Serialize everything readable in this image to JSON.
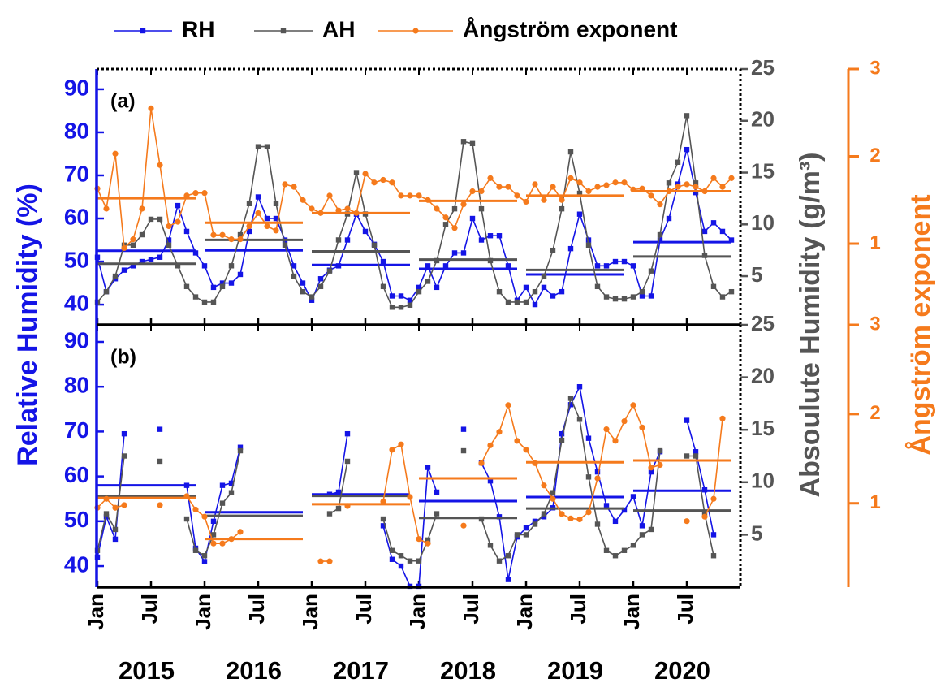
{
  "chart_data": [
    {
      "type": "line",
      "title": "(a)",
      "ylabel": "Relative Humidity (%)",
      "y2label": "Absoulute Humidity (g/m³)",
      "y3label": "Ångström exponent",
      "xlim": [
        "2015-01",
        "2021-01"
      ],
      "x": [
        "2015-01",
        "2015-02",
        "2015-03",
        "2015-04",
        "2015-05",
        "2015-06",
        "2015-07",
        "2015-08",
        "2015-09",
        "2015-10",
        "2015-11",
        "2015-12",
        "2016-01",
        "2016-02",
        "2016-03",
        "2016-04",
        "2016-05",
        "2016-06",
        "2016-07",
        "2016-08",
        "2016-09",
        "2016-10",
        "2016-11",
        "2016-12",
        "2017-01",
        "2017-02",
        "2017-03",
        "2017-04",
        "2017-05",
        "2017-06",
        "2017-07",
        "2017-08",
        "2017-09",
        "2017-10",
        "2017-11",
        "2017-12",
        "2018-01",
        "2018-02",
        "2018-03",
        "2018-04",
        "2018-05",
        "2018-06",
        "2018-07",
        "2018-08",
        "2018-09",
        "2018-10",
        "2018-11",
        "2018-12",
        "2019-01",
        "2019-02",
        "2019-03",
        "2019-04",
        "2019-05",
        "2019-06",
        "2019-07",
        "2019-08",
        "2019-09",
        "2019-10",
        "2019-11",
        "2019-12",
        "2020-01",
        "2020-02",
        "2020-03",
        "2020-04",
        "2020-05",
        "2020-06",
        "2020-07",
        "2020-08",
        "2020-09",
        "2020-10",
        "2020-11",
        "2020-12"
      ],
      "ylim": [
        35.3,
        94.7
      ],
      "yticks": [
        40,
        50,
        60,
        70,
        80,
        90
      ],
      "y2lim": [
        0.3,
        25
      ],
      "y2ticks": [
        5,
        10,
        15,
        20,
        25
      ],
      "y3lim": [
        0.07,
        3
      ],
      "y3ticks": [
        1,
        2,
        3
      ],
      "series": [
        {
          "name": "RH",
          "color": "#1414e6",
          "axis": "y",
          "marker": "square",
          "values": [
            51,
            43,
            46,
            48,
            49,
            50,
            50.5,
            51,
            55,
            63,
            57,
            52,
            49,
            44,
            45,
            45,
            47,
            57,
            65,
            60,
            60,
            55,
            49,
            45,
            41,
            46,
            48,
            49,
            55,
            61,
            57,
            54,
            50,
            42,
            42,
            41,
            44,
            49,
            44,
            49,
            52,
            52,
            60,
            55,
            56,
            56,
            49,
            41,
            44,
            40,
            44,
            42,
            43,
            53,
            61,
            55,
            49,
            49,
            50,
            50,
            49,
            42,
            42,
            55,
            60,
            68,
            76,
            66,
            57,
            59,
            57,
            55
          ],
          "means": [
            52.5,
            52.6,
            49.2,
            48.3,
            47,
            54.5
          ]
        },
        {
          "name": "AH",
          "color": "#555555",
          "axis": "y2",
          "marker": "square",
          "values": [
            2.5,
            3.5,
            5,
            8,
            8,
            9,
            10.5,
            10.5,
            8,
            6,
            4,
            3,
            2.5,
            2.5,
            4,
            6,
            9,
            12,
            17.5,
            17.5,
            12,
            8,
            5,
            3.5,
            3,
            4,
            5.5,
            8.5,
            11,
            15,
            11,
            8,
            4,
            2,
            2,
            2.2,
            3.5,
            4.5,
            6.5,
            10,
            11.5,
            18,
            17.8,
            11.5,
            6.5,
            3.5,
            2.5,
            2.5,
            2.5,
            3.5,
            5,
            7.5,
            11.5,
            17,
            13,
            8,
            4,
            3,
            2.8,
            2.8,
            3,
            3.5,
            5.5,
            9,
            14,
            16,
            20.5,
            14,
            7,
            4,
            3,
            3.5
          ],
          "means": [
            6.2,
            8.5,
            7.4,
            6.6,
            5.6,
            6.9
          ]
        },
        {
          "name": "Ångström exponent",
          "color": "#f57a1c",
          "axis": "y3",
          "marker": "circle",
          "values": [
            1.63,
            1.4,
            2.03,
            0.95,
            1.05,
            1.4,
            2.55,
            1.9,
            1.2,
            1.25,
            1.55,
            1.58,
            1.58,
            1.1,
            1.1,
            1.05,
            1.05,
            1.2,
            1.35,
            1.2,
            1.15,
            1.68,
            1.65,
            1.5,
            1.4,
            1.35,
            1.55,
            1.38,
            1.4,
            1.35,
            1.8,
            1.7,
            1.73,
            1.7,
            1.55,
            1.55,
            1.55,
            1.5,
            1.4,
            1.3,
            1.18,
            1.45,
            1.6,
            1.6,
            1.75,
            1.65,
            1.65,
            1.55,
            1.48,
            1.68,
            1.5,
            1.65,
            1.5,
            1.75,
            1.7,
            1.6,
            1.65,
            1.67,
            1.7,
            1.7,
            1.62,
            1.63,
            1.55,
            1.45,
            1.6,
            1.65,
            1.68,
            1.65,
            1.6,
            1.75,
            1.65,
            1.75
          ],
          "means": [
            1.52,
            1.24,
            1.35,
            1.49,
            1.55,
            1.6
          ]
        }
      ]
    },
    {
      "type": "line",
      "title": "(b)",
      "xlim": [
        "2015-01",
        "2021-01"
      ],
      "x": [
        "2015-01",
        "2015-02",
        "2015-03",
        "2015-04",
        "2015-05",
        "2015-06",
        "2015-07",
        "2015-08",
        "2015-09",
        "2015-10",
        "2015-11",
        "2015-12",
        "2016-01",
        "2016-02",
        "2016-03",
        "2016-04",
        "2016-05",
        "2016-06",
        "2016-07",
        "2016-08",
        "2016-09",
        "2016-10",
        "2016-11",
        "2016-12",
        "2017-01",
        "2017-02",
        "2017-03",
        "2017-04",
        "2017-05",
        "2017-06",
        "2017-07",
        "2017-08",
        "2017-09",
        "2017-10",
        "2017-11",
        "2017-12",
        "2018-01",
        "2018-02",
        "2018-03",
        "2018-04",
        "2018-05",
        "2018-06",
        "2018-07",
        "2018-08",
        "2018-09",
        "2018-10",
        "2018-11",
        "2018-12",
        "2019-01",
        "2019-02",
        "2019-03",
        "2019-04",
        "2019-05",
        "2019-06",
        "2019-07",
        "2019-08",
        "2019-09",
        "2019-10",
        "2019-11",
        "2019-12",
        "2020-01",
        "2020-02",
        "2020-03",
        "2020-04",
        "2020-05",
        "2020-06",
        "2020-07",
        "2020-08",
        "2020-09",
        "2020-10",
        "2020-11",
        "2020-12"
      ],
      "xticks": [
        {
          "value": "2015-01",
          "label": "Jan"
        },
        {
          "value": "2015-07",
          "label": "Jul"
        },
        {
          "value": "2016-01",
          "label": "Jan"
        },
        {
          "value": "2016-07",
          "label": "Jul"
        },
        {
          "value": "2017-01",
          "label": "Jan"
        },
        {
          "value": "2017-07",
          "label": "Jul"
        },
        {
          "value": "2018-01",
          "label": "Jan"
        },
        {
          "value": "2018-07",
          "label": "Jul"
        },
        {
          "value": "2019-01",
          "label": "Jan"
        },
        {
          "value": "2019-07",
          "label": "Jul"
        },
        {
          "value": "2020-01",
          "label": "Jan"
        },
        {
          "value": "2020-07",
          "label": "Jul"
        }
      ],
      "x_group_labels": [
        "2015",
        "2016",
        "2017",
        "2018",
        "2019",
        "2020"
      ],
      "ylim": [
        35.3,
        93.8
      ],
      "yticks": [
        40,
        50,
        60,
        70,
        80,
        90
      ],
      "y2lim": [
        0,
        25
      ],
      "y2ticks": [
        5,
        10,
        15,
        20,
        25
      ],
      "y3lim": [
        0.06,
        3
      ],
      "y3ticks": [
        1,
        2,
        3
      ],
      "series": [
        {
          "name": "RH",
          "color": "#1414e6",
          "axis": "y",
          "marker": "square",
          "values": [
            42,
            51,
            46,
            69.5,
            null,
            null,
            null,
            70.5,
            null,
            null,
            58,
            44,
            41,
            50,
            58,
            58.5,
            66.5,
            null,
            null,
            null,
            null,
            null,
            null,
            null,
            null,
            null,
            56,
            56.5,
            69.5,
            null,
            null,
            null,
            49,
            41.5,
            40,
            35.5,
            35.5,
            62,
            56.5,
            null,
            null,
            70.5,
            null,
            63,
            59,
            51,
            37,
            46.5,
            48.5,
            50,
            51,
            53,
            69.5,
            76,
            80,
            68.5,
            61,
            53.5,
            50,
            52.5,
            55.5,
            49,
            61,
            65.5,
            null,
            null,
            72.5,
            65.5,
            57,
            47,
            null,
            null
          ],
          "means": [
            58,
            52,
            56,
            54.5,
            55.4,
            56.8
          ]
        },
        {
          "name": "AH",
          "color": "#555555",
          "axis": "y2",
          "marker": "square",
          "values": [
            3.5,
            7,
            5.5,
            12.5,
            null,
            null,
            null,
            12,
            null,
            null,
            6.5,
            3.5,
            3,
            5,
            8,
            9,
            13,
            null,
            null,
            null,
            null,
            null,
            null,
            null,
            null,
            null,
            7,
            7.5,
            12,
            null,
            null,
            null,
            6.5,
            3.5,
            3,
            2.5,
            2.5,
            4.5,
            7,
            null,
            null,
            13,
            null,
            6.5,
            4,
            2.5,
            3,
            5,
            5,
            6,
            7,
            9,
            14,
            18,
            16,
            10.5,
            6,
            3.5,
            3,
            3.5,
            4,
            5,
            5.5,
            13,
            null,
            null,
            12.5,
            12.5,
            7,
            3,
            null,
            null
          ],
          "means": [
            8.7,
            6.8,
            8.7,
            6.6,
            7.5,
            7.3
          ]
        },
        {
          "name": "Ångström exponent",
          "color": "#f57a1c",
          "axis": "y3",
          "marker": "circle",
          "values": [
            0.95,
            1.05,
            0.95,
            0.98,
            null,
            null,
            null,
            0.98,
            null,
            null,
            1.08,
            0.93,
            0.85,
            0.55,
            0.55,
            0.6,
            0.68,
            null,
            null,
            null,
            null,
            null,
            null,
            null,
            null,
            0.35,
            0.35,
            null,
            0.97,
            null,
            null,
            null,
            1.02,
            1.6,
            1.66,
            1.07,
            0.6,
            0.55,
            null,
            null,
            null,
            0.75,
            null,
            1.45,
            1.65,
            1.8,
            2.1,
            1.7,
            1.6,
            1.45,
            1.2,
            1.05,
            0.88,
            0.83,
            0.82,
            0.9,
            1.28,
            1.83,
            1.7,
            1.92,
            2.1,
            1.85,
            1.4,
            1.43,
            null,
            null,
            0.8,
            null,
            0.85,
            1.05,
            1.95,
            null
          ],
          "means": [
            1.06,
            0.6,
            0.99,
            1.28,
            1.46,
            1.48
          ]
        }
      ]
    }
  ]
}
